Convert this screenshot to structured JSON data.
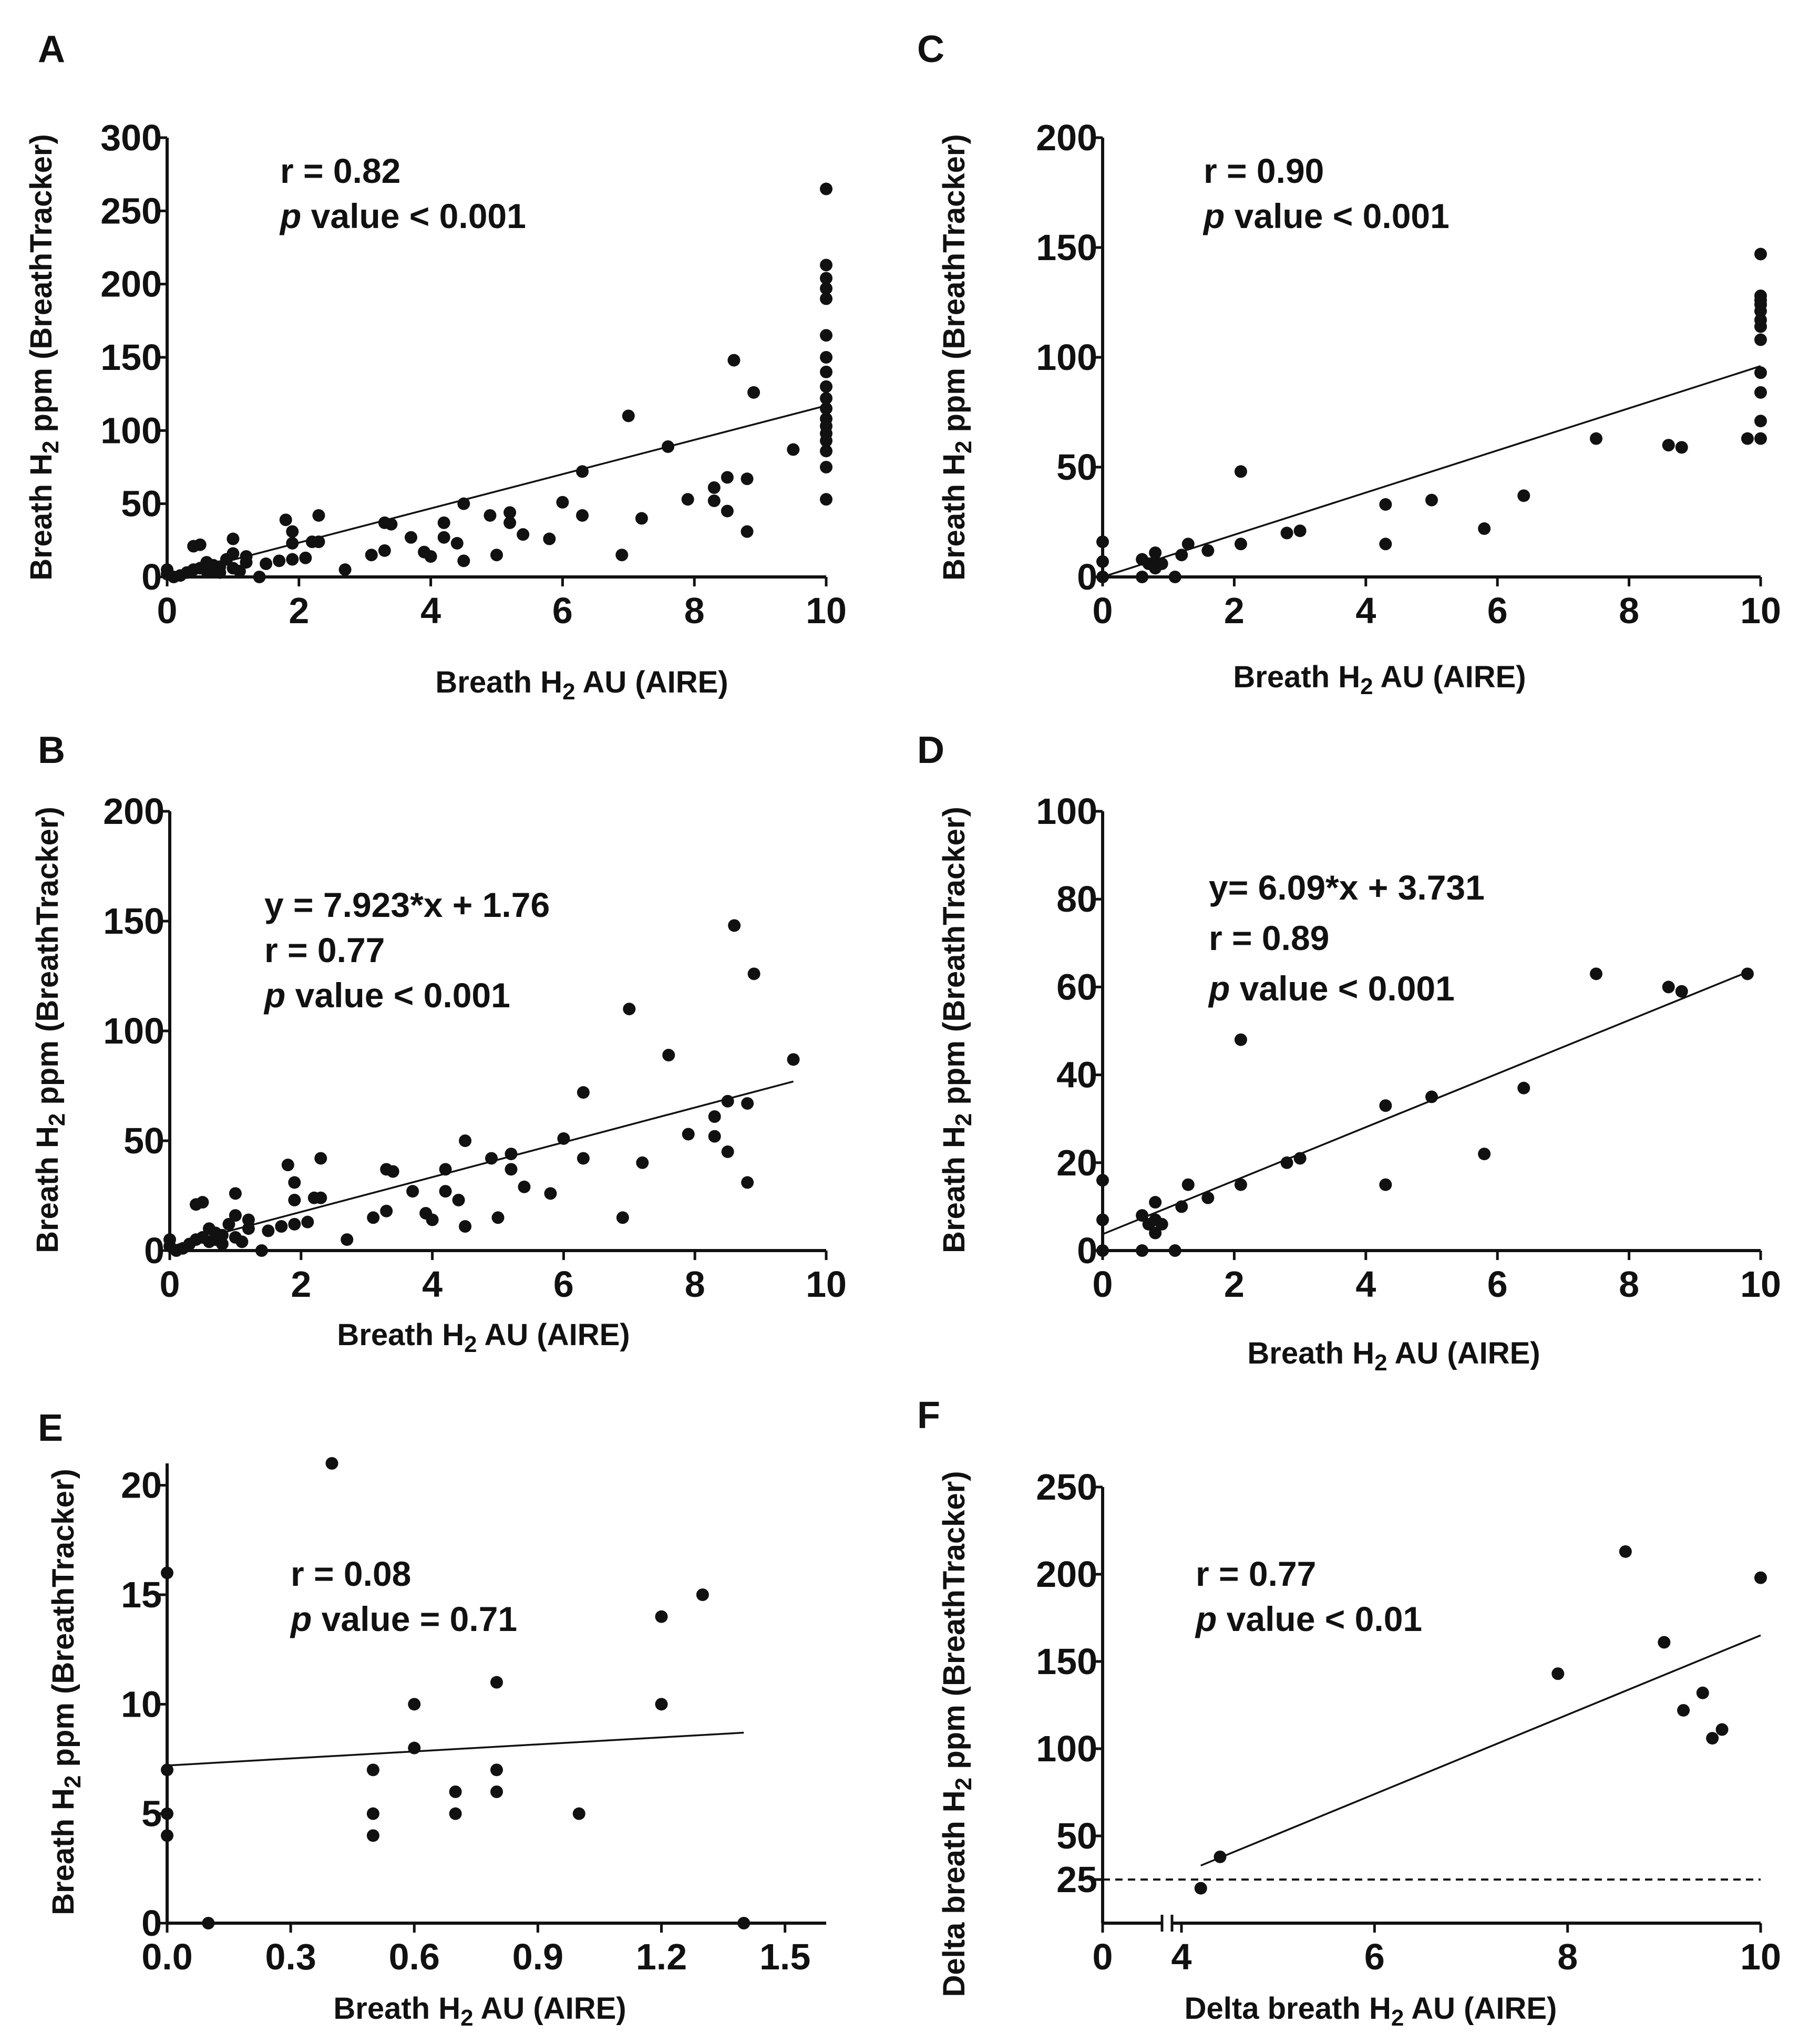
{
  "chart_data": [
    {
      "id": "A",
      "type": "scatter",
      "panel_label": "A",
      "xlabel": "Breath H",
      "xlabel_sub": "2",
      "xlabel_rest": " AU (AIRE)",
      "ylabel": "Breath H",
      "ylabel_sub": "2",
      "ylabel_rest": " ppm (BreathTracker)",
      "xlim": [
        0,
        10
      ],
      "ylim": [
        0,
        300
      ],
      "xticks": [
        0,
        2,
        4,
        6,
        8,
        10
      ],
      "xtick_labels": [
        "0",
        "2",
        "4",
        "6",
        "8",
        "10"
      ],
      "yticks": [
        0,
        50,
        100,
        150,
        200,
        250,
        300
      ],
      "ytick_labels": [
        "0",
        "50",
        "100",
        "150",
        "200",
        "250",
        "300"
      ],
      "annotations": [
        {
          "text": "r = 0.82"
        },
        {
          "italic": "p",
          "text": " value < 0.001"
        }
      ],
      "fit_line": {
        "x": [
          0,
          10
        ],
        "y": [
          0,
          117
        ]
      },
      "points": [
        [
          0,
          2
        ],
        [
          0,
          5
        ],
        [
          0.1,
          0
        ],
        [
          0.2,
          1
        ],
        [
          0.3,
          3
        ],
        [
          0.4,
          5
        ],
        [
          0.4,
          21
        ],
        [
          0.5,
          6
        ],
        [
          0.5,
          22
        ],
        [
          0.6,
          4
        ],
        [
          0.6,
          10
        ],
        [
          0.7,
          8
        ],
        [
          0.7,
          5
        ],
        [
          0.8,
          7
        ],
        [
          0.8,
          3
        ],
        [
          0.9,
          12
        ],
        [
          1,
          6
        ],
        [
          1,
          16
        ],
        [
          1,
          26
        ],
        [
          1.1,
          4
        ],
        [
          1.2,
          10
        ],
        [
          1.2,
          14
        ],
        [
          1.4,
          0
        ],
        [
          1.5,
          9
        ],
        [
          1.7,
          11
        ],
        [
          1.8,
          39
        ],
        [
          1.9,
          12
        ],
        [
          1.9,
          31
        ],
        [
          1.9,
          23
        ],
        [
          2.1,
          13
        ],
        [
          2.2,
          24
        ],
        [
          2.3,
          24
        ],
        [
          2.3,
          42
        ],
        [
          2.7,
          5
        ],
        [
          3.1,
          15
        ],
        [
          3.3,
          37
        ],
        [
          3.4,
          36
        ],
        [
          3.3,
          18
        ],
        [
          3.7,
          27
        ],
        [
          3.9,
          17
        ],
        [
          4,
          14
        ],
        [
          4.2,
          37
        ],
        [
          4.2,
          27
        ],
        [
          4.4,
          23
        ],
        [
          4.5,
          50
        ],
        [
          4.5,
          11
        ],
        [
          4.9,
          42
        ],
        [
          5,
          15
        ],
        [
          5.2,
          44
        ],
        [
          5.2,
          37
        ],
        [
          5.4,
          29
        ],
        [
          5.8,
          26
        ],
        [
          6,
          51
        ],
        [
          6.3,
          42
        ],
        [
          6.3,
          72
        ],
        [
          6.9,
          15
        ],
        [
          7,
          110
        ],
        [
          7.2,
          40
        ],
        [
          7.6,
          89
        ],
        [
          7.9,
          53
        ],
        [
          8.3,
          61
        ],
        [
          8.3,
          52
        ],
        [
          8.5,
          45
        ],
        [
          8.6,
          148
        ],
        [
          8.5,
          68
        ],
        [
          8.8,
          31
        ],
        [
          8.8,
          67
        ],
        [
          8.9,
          126
        ],
        [
          9.5,
          87
        ],
        [
          10,
          265
        ],
        [
          10,
          213
        ],
        [
          10,
          204
        ],
        [
          10,
          197
        ],
        [
          10,
          190
        ],
        [
          10,
          165
        ],
        [
          10,
          150
        ],
        [
          10,
          140
        ],
        [
          10,
          130
        ],
        [
          10,
          122
        ],
        [
          10,
          115
        ],
        [
          10,
          108
        ],
        [
          10,
          103
        ],
        [
          10,
          98
        ],
        [
          10,
          93
        ],
        [
          10,
          86
        ],
        [
          10,
          75
        ],
        [
          10,
          53
        ]
      ]
    },
    {
      "id": "B",
      "type": "scatter",
      "panel_label": "B",
      "xlabel": "Breath H",
      "xlabel_sub": "2",
      "xlabel_rest": " AU (AIRE)",
      "ylabel": "Breath H",
      "ylabel_sub": "2",
      "ylabel_rest": " ppm (BreathTracker)",
      "xlim": [
        0,
        10
      ],
      "ylim": [
        0,
        200
      ],
      "xticks": [
        0,
        2,
        4,
        6,
        8,
        10
      ],
      "xtick_labels": [
        "0",
        "2",
        "4",
        "6",
        "8",
        "10"
      ],
      "yticks": [
        0,
        50,
        100,
        150,
        200
      ],
      "ytick_labels": [
        "0",
        "50",
        "100",
        "150",
        "200"
      ],
      "annotations": [
        {
          "text": "y = 7.923*x + 1.76"
        },
        {
          "text": "r = 0.77"
        },
        {
          "italic": "p",
          "text": " value < 0.001"
        }
      ],
      "fit_line": {
        "x": [
          0,
          9.5
        ],
        "y": [
          1.76,
          77
        ]
      },
      "points": [
        [
          0,
          2
        ],
        [
          0,
          5
        ],
        [
          0.1,
          0
        ],
        [
          0.2,
          1
        ],
        [
          0.3,
          3
        ],
        [
          0.4,
          5
        ],
        [
          0.4,
          21
        ],
        [
          0.5,
          6
        ],
        [
          0.5,
          22
        ],
        [
          0.6,
          4
        ],
        [
          0.6,
          10
        ],
        [
          0.7,
          8
        ],
        [
          0.7,
          5
        ],
        [
          0.8,
          7
        ],
        [
          0.8,
          3
        ],
        [
          0.9,
          12
        ],
        [
          1,
          6
        ],
        [
          1,
          16
        ],
        [
          1,
          26
        ],
        [
          1.1,
          4
        ],
        [
          1.2,
          10
        ],
        [
          1.2,
          14
        ],
        [
          1.4,
          0
        ],
        [
          1.5,
          9
        ],
        [
          1.7,
          11
        ],
        [
          1.8,
          39
        ],
        [
          1.9,
          12
        ],
        [
          1.9,
          31
        ],
        [
          1.9,
          23
        ],
        [
          2.1,
          13
        ],
        [
          2.2,
          24
        ],
        [
          2.3,
          24
        ],
        [
          2.3,
          42
        ],
        [
          2.7,
          5
        ],
        [
          3.1,
          15
        ],
        [
          3.3,
          37
        ],
        [
          3.4,
          36
        ],
        [
          3.3,
          18
        ],
        [
          3.7,
          27
        ],
        [
          3.9,
          17
        ],
        [
          4,
          14
        ],
        [
          4.2,
          37
        ],
        [
          4.2,
          27
        ],
        [
          4.4,
          23
        ],
        [
          4.5,
          50
        ],
        [
          4.5,
          11
        ],
        [
          4.9,
          42
        ],
        [
          5,
          15
        ],
        [
          5.2,
          44
        ],
        [
          5.2,
          37
        ],
        [
          5.4,
          29
        ],
        [
          5.8,
          26
        ],
        [
          6,
          51
        ],
        [
          6.3,
          42
        ],
        [
          6.3,
          72
        ],
        [
          6.9,
          15
        ],
        [
          7,
          110
        ],
        [
          7.2,
          40
        ],
        [
          7.6,
          89
        ],
        [
          7.9,
          53
        ],
        [
          8.3,
          61
        ],
        [
          8.3,
          52
        ],
        [
          8.5,
          45
        ],
        [
          8.6,
          148
        ],
        [
          8.5,
          68
        ],
        [
          8.8,
          31
        ],
        [
          8.8,
          67
        ],
        [
          8.9,
          126
        ],
        [
          9.5,
          87
        ]
      ]
    },
    {
      "id": "C",
      "type": "scatter",
      "panel_label": "C",
      "xlabel": "Breath H",
      "xlabel_sub": "2",
      "xlabel_rest": " AU (AIRE)",
      "ylabel": "Breath H",
      "ylabel_sub": "2",
      "ylabel_rest": " ppm (BreathTracker)",
      "xlim": [
        0,
        10
      ],
      "ylim": [
        0,
        200
      ],
      "xticks": [
        0,
        2,
        4,
        6,
        8,
        10
      ],
      "xtick_labels": [
        "0",
        "2",
        "4",
        "6",
        "8",
        "10"
      ],
      "yticks": [
        0,
        50,
        100,
        150,
        200
      ],
      "ytick_labels": [
        "0",
        "50",
        "100",
        "150",
        "200"
      ],
      "annotations": [
        {
          "text": "r = 0.90"
        },
        {
          "italic": "p",
          "text": " value < 0.001"
        }
      ],
      "fit_line": {
        "x": [
          0,
          10
        ],
        "y": [
          0,
          96
        ]
      },
      "points": [
        [
          0,
          16
        ],
        [
          0,
          7
        ],
        [
          0,
          0
        ],
        [
          0.6,
          0
        ],
        [
          0.6,
          8
        ],
        [
          0.7,
          6
        ],
        [
          0.8,
          11
        ],
        [
          0.8,
          4
        ],
        [
          0.9,
          6
        ],
        [
          0.8,
          7
        ],
        [
          1.1,
          0
        ],
        [
          1.2,
          10
        ],
        [
          1.3,
          15
        ],
        [
          1.6,
          12
        ],
        [
          2.1,
          48
        ],
        [
          2.1,
          15
        ],
        [
          2.8,
          20
        ],
        [
          3,
          21
        ],
        [
          4.3,
          33
        ],
        [
          4.3,
          15
        ],
        [
          5,
          35
        ],
        [
          5.8,
          22
        ],
        [
          6.4,
          37
        ],
        [
          7.5,
          63
        ],
        [
          8.6,
          60
        ],
        [
          8.8,
          59
        ],
        [
          9.8,
          63
        ],
        [
          10,
          147
        ],
        [
          10,
          128
        ],
        [
          10,
          126
        ],
        [
          10,
          124
        ],
        [
          10,
          121
        ],
        [
          10,
          117
        ],
        [
          10,
          114
        ],
        [
          10,
          108
        ],
        [
          10,
          93
        ],
        [
          10,
          84
        ],
        [
          10,
          71
        ],
        [
          10,
          63
        ]
      ]
    },
    {
      "id": "D",
      "type": "scatter",
      "panel_label": "D",
      "xlabel": "Breath H",
      "xlabel_sub": "2",
      "xlabel_rest": " AU (AIRE)",
      "ylabel": "Breath H",
      "ylabel_sub": "2",
      "ylabel_rest": " ppm (BreathTracker)",
      "xlim": [
        0,
        10
      ],
      "ylim": [
        0,
        100
      ],
      "xticks": [
        0,
        2,
        4,
        6,
        8,
        10
      ],
      "xtick_labels": [
        "0",
        "2",
        "4",
        "6",
        "8",
        "10"
      ],
      "yticks": [
        0,
        20,
        40,
        60,
        80,
        100
      ],
      "ytick_labels": [
        "0",
        "20",
        "40",
        "60",
        "80",
        "100"
      ],
      "annotations": [
        {
          "text": "y= 6.09*x + 3.731"
        },
        {
          "text": "r = 0.89"
        },
        {
          "italic": "p",
          "text": " value < 0.001"
        }
      ],
      "fit_line": {
        "x": [
          0,
          9.8
        ],
        "y": [
          3.731,
          63.4
        ]
      },
      "points": [
        [
          0,
          16
        ],
        [
          0,
          7
        ],
        [
          0,
          0
        ],
        [
          0.6,
          0
        ],
        [
          0.6,
          8
        ],
        [
          0.7,
          6
        ],
        [
          0.8,
          11
        ],
        [
          0.8,
          4
        ],
        [
          0.9,
          6
        ],
        [
          0.8,
          7
        ],
        [
          1.1,
          0
        ],
        [
          1.2,
          10
        ],
        [
          1.3,
          15
        ],
        [
          1.6,
          12
        ],
        [
          2.1,
          48
        ],
        [
          2.1,
          15
        ],
        [
          2.8,
          20
        ],
        [
          3,
          21
        ],
        [
          4.3,
          33
        ],
        [
          4.3,
          15
        ],
        [
          5,
          35
        ],
        [
          5.8,
          22
        ],
        [
          6.4,
          37
        ],
        [
          7.5,
          63
        ],
        [
          8.6,
          60
        ],
        [
          8.8,
          59
        ],
        [
          9.8,
          63
        ]
      ]
    },
    {
      "id": "E",
      "type": "scatter",
      "panel_label": "E",
      "xlabel": "Breath H",
      "xlabel_sub": "2",
      "xlabel_rest": " AU (AIRE)",
      "ylabel": "Breath H",
      "ylabel_sub": "2",
      "ylabel_rest": " ppm (BreathTracker)",
      "xlim": [
        0,
        1.6
      ],
      "ylim": [
        0,
        21
      ],
      "xticks": [
        0,
        0.3,
        0.6,
        0.9,
        1.2,
        1.5
      ],
      "xtick_labels": [
        "0.0",
        "0.3",
        "0.6",
        "0.9",
        "1.2",
        "1.5"
      ],
      "yticks": [
        0,
        5,
        10,
        15,
        20
      ],
      "ytick_labels": [
        "0",
        "5",
        "10",
        "15",
        "20"
      ],
      "annotations": [
        {
          "text": "r = 0.08"
        },
        {
          "italic": "p",
          "text": " value = 0.71"
        }
      ],
      "fit_line": {
        "x": [
          0,
          1.4
        ],
        "y": [
          7.2,
          8.7
        ]
      },
      "points": [
        [
          0,
          16
        ],
        [
          0,
          7
        ],
        [
          0,
          5
        ],
        [
          0,
          4
        ],
        [
          0.1,
          0
        ],
        [
          0.4,
          21
        ],
        [
          0.5,
          7
        ],
        [
          0.5,
          5
        ],
        [
          0.5,
          4
        ],
        [
          0.6,
          10
        ],
        [
          0.6,
          8
        ],
        [
          0.7,
          6
        ],
        [
          0.7,
          5
        ],
        [
          0.8,
          11
        ],
        [
          0.8,
          7
        ],
        [
          0.8,
          6
        ],
        [
          1,
          5
        ],
        [
          1.2,
          14
        ],
        [
          1.2,
          10
        ],
        [
          1.3,
          15
        ],
        [
          1.4,
          0
        ]
      ]
    },
    {
      "id": "F",
      "type": "scatter",
      "panel_label": "F",
      "xlabel": "Delta breath H",
      "xlabel_sub": "2",
      "xlabel_rest": " AU (AIRE)",
      "ylabel": "Delta breath H",
      "ylabel_sub": "2",
      "ylabel_rest": " ppm (BreathTracker)",
      "xlim": [
        0,
        10
      ],
      "ylim": [
        0,
        250
      ],
      "x_axis_break": true,
      "xticks": [
        0,
        4,
        6,
        8,
        10
      ],
      "xtick_labels": [
        "0",
        "4",
        "6",
        "8",
        "10"
      ],
      "yticks": [
        25,
        50,
        100,
        150,
        200,
        250
      ],
      "ytick_labels": [
        "25",
        "50",
        "100",
        "150",
        "200",
        "250"
      ],
      "reference_line": {
        "y": 25,
        "style": "dashed"
      },
      "annotations": [
        {
          "text": "r = 0.77"
        },
        {
          "italic": "p",
          "text": " value < 0.01"
        }
      ],
      "fit_line": {
        "x": [
          4.2,
          10
        ],
        "y": [
          33,
          165
        ]
      },
      "points": [
        [
          4.2,
          20
        ],
        [
          4.4,
          38
        ],
        [
          7.9,
          143
        ],
        [
          8.6,
          213
        ],
        [
          9,
          161
        ],
        [
          9.2,
          122
        ],
        [
          9.4,
          132
        ],
        [
          9.5,
          106
        ],
        [
          9.6,
          111
        ],
        [
          10,
          198
        ]
      ]
    }
  ]
}
